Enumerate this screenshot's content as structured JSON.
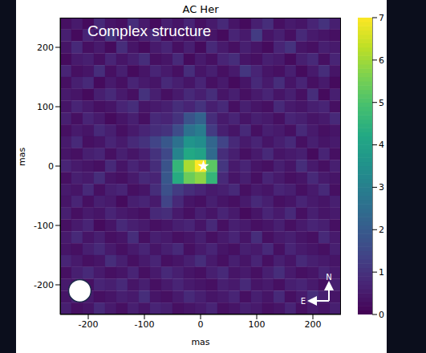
{
  "chart_data": {
    "type": "heatmap",
    "title": "AC Her",
    "annotation": "Complex structure",
    "x_label": "mas",
    "y_label": "mas",
    "xlim": [
      -250,
      250
    ],
    "ylim": [
      -250,
      250
    ],
    "xticks": [
      -200,
      -100,
      0,
      100,
      200
    ],
    "yticks": [
      -200,
      -100,
      0,
      100,
      200
    ],
    "x": [
      -240,
      -220,
      -200,
      -180,
      -160,
      -140,
      -120,
      -100,
      -80,
      -60,
      -40,
      -20,
      0,
      20,
      40,
      60,
      80,
      100,
      120,
      140,
      160,
      180,
      200,
      220,
      240
    ],
    "y": [
      240,
      220,
      200,
      180,
      160,
      140,
      120,
      100,
      80,
      60,
      40,
      20,
      0,
      -20,
      -40,
      -60,
      -80,
      -100,
      -120,
      -140,
      -160,
      -180,
      -200,
      -220,
      -240
    ],
    "cells": [
      [
        0.3,
        0.5,
        0.2,
        0.8,
        0.4,
        0.3,
        0.9,
        0.5,
        0.2,
        0.6,
        0.4,
        0.7,
        0.3,
        0.5,
        0.8,
        0.4,
        0.2,
        0.6,
        0.9,
        0.3,
        0.5,
        0.4,
        0.7,
        1.0,
        0.6
      ],
      [
        0.6,
        0.2,
        0.7,
        0.4,
        1.1,
        0.5,
        0.3,
        0.6,
        0.8,
        0.2,
        0.5,
        0.3,
        0.6,
        0.4,
        0.2,
        0.7,
        0.5,
        1.2,
        0.4,
        0.6,
        0.3,
        0.8,
        0.5,
        0.4,
        0.3
      ],
      [
        0.4,
        0.8,
        0.3,
        0.5,
        0.2,
        0.9,
        0.4,
        0.2,
        0.5,
        0.7,
        0.3,
        0.6,
        0.2,
        0.8,
        0.5,
        0.3,
        0.6,
        0.4,
        0.2,
        0.7,
        1.0,
        0.4,
        0.3,
        0.6,
        0.5
      ],
      [
        0.2,
        0.5,
        0.6,
        0.3,
        0.7,
        0.4,
        0.6,
        0.9,
        0.3,
        0.4,
        0.8,
        0.2,
        0.5,
        0.3,
        0.7,
        0.9,
        0.4,
        0.3,
        0.6,
        0.5,
        0.2,
        0.6,
        0.8,
        0.3,
        0.7
      ],
      [
        0.7,
        0.3,
        0.4,
        0.9,
        0.3,
        0.6,
        0.2,
        0.4,
        0.7,
        0.5,
        0.3,
        0.9,
        0.4,
        0.6,
        0.3,
        0.5,
        1.1,
        0.7,
        0.4,
        0.3,
        0.6,
        0.2,
        0.5,
        0.9,
        0.4
      ],
      [
        0.3,
        0.6,
        0.8,
        0.2,
        0.5,
        0.3,
        0.7,
        0.5,
        0.4,
        0.8,
        0.6,
        0.4,
        0.7,
        0.3,
        0.5,
        0.2,
        0.4,
        0.8,
        0.5,
        0.9,
        0.4,
        0.7,
        0.3,
        0.5,
        0.2
      ],
      [
        0.5,
        0.4,
        0.2,
        0.6,
        0.8,
        0.5,
        0.3,
        1.0,
        0.6,
        0.3,
        0.5,
        0.8,
        0.6,
        0.9,
        0.4,
        0.6,
        0.3,
        0.5,
        0.7,
        0.4,
        0.6,
        0.3,
        0.9,
        0.2,
        0.6
      ],
      [
        0.4,
        0.7,
        0.5,
        0.3,
        0.4,
        0.7,
        0.9,
        0.4,
        0.5,
        0.6,
        0.9,
        0.7,
        1.0,
        0.6,
        0.8,
        0.3,
        0.6,
        0.4,
        0.3,
        0.8,
        0.5,
        0.4,
        0.6,
        0.7,
        0.3
      ],
      [
        0.6,
        0.3,
        0.7,
        0.5,
        0.2,
        0.4,
        0.6,
        0.3,
        0.8,
        0.7,
        1.0,
        1.8,
        2.2,
        0.9,
        0.5,
        0.7,
        0.4,
        0.6,
        0.5,
        0.3,
        0.7,
        0.6,
        0.4,
        0.5,
        0.8
      ],
      [
        0.3,
        0.5,
        0.4,
        0.8,
        0.6,
        0.3,
        0.5,
        0.7,
        0.9,
        1.0,
        1.6,
        2.6,
        2.9,
        1.2,
        0.6,
        0.4,
        0.8,
        0.3,
        0.6,
        0.5,
        0.3,
        0.8,
        0.5,
        0.3,
        0.4
      ],
      [
        0.5,
        0.8,
        0.3,
        0.4,
        0.7,
        0.5,
        0.8,
        1.0,
        1.4,
        1.9,
        2.6,
        3.6,
        3.4,
        2.3,
        1.4,
        0.8,
        0.5,
        0.7,
        0.4,
        0.6,
        0.8,
        0.3,
        0.6,
        0.4,
        0.5
      ],
      [
        0.4,
        0.3,
        0.6,
        0.7,
        0.3,
        0.6,
        0.4,
        0.6,
        1.0,
        1.5,
        3.1,
        4.2,
        4.0,
        2.4,
        0.9,
        0.6,
        0.3,
        0.5,
        0.8,
        0.4,
        0.5,
        0.6,
        0.2,
        0.7,
        0.3
      ],
      [
        0.7,
        0.5,
        0.4,
        0.3,
        0.8,
        0.4,
        0.7,
        0.5,
        0.9,
        1.8,
        4.6,
        6.1,
        7.0,
        5.2,
        1.1,
        0.5,
        0.7,
        0.4,
        0.3,
        0.6,
        0.4,
        0.9,
        0.5,
        0.3,
        0.6
      ],
      [
        0.3,
        0.6,
        0.5,
        0.9,
        0.4,
        0.3,
        0.5,
        0.8,
        0.7,
        1.9,
        4.3,
        5.4,
        5.8,
        4.6,
        0.8,
        0.4,
        0.6,
        0.3,
        0.7,
        0.5,
        0.3,
        0.4,
        0.8,
        0.5,
        0.4
      ],
      [
        0.5,
        0.4,
        0.8,
        0.3,
        0.6,
        0.7,
        0.3,
        0.4,
        0.9,
        1.7,
        1.2,
        0.9,
        0.7,
        0.5,
        0.6,
        0.8,
        0.3,
        0.5,
        0.4,
        0.7,
        0.6,
        0.3,
        0.5,
        0.8,
        0.3
      ],
      [
        0.4,
        0.7,
        0.3,
        0.6,
        0.5,
        0.2,
        0.6,
        0.7,
        0.5,
        1.4,
        0.8,
        0.4,
        0.3,
        0.6,
        0.4,
        0.3,
        0.5,
        0.8,
        0.6,
        0.3,
        0.4,
        0.7,
        0.5,
        0.4,
        0.6
      ],
      [
        0.6,
        0.3,
        0.5,
        0.4,
        0.7,
        0.5,
        0.4,
        0.3,
        0.8,
        0.9,
        0.5,
        0.3,
        0.6,
        0.4,
        0.7,
        0.5,
        0.2,
        0.4,
        0.7,
        0.5,
        0.8,
        0.3,
        0.6,
        0.4,
        0.5
      ],
      [
        0.3,
        0.5,
        0.7,
        0.2,
        0.4,
        0.8,
        0.6,
        0.5,
        0.3,
        0.4,
        0.6,
        0.7,
        0.4,
        0.8,
        0.3,
        0.6,
        0.5,
        0.3,
        0.4,
        0.6,
        0.3,
        0.5,
        0.7,
        0.6,
        0.3
      ],
      [
        0.5,
        0.8,
        0.4,
        0.6,
        0.3,
        0.4,
        0.9,
        0.3,
        0.6,
        0.5,
        0.3,
        0.4,
        0.6,
        0.3,
        0.5,
        0.7,
        0.4,
        0.9,
        0.3,
        0.5,
        0.6,
        0.4,
        0.3,
        0.8,
        0.5
      ],
      [
        0.4,
        0.3,
        0.6,
        0.8,
        0.5,
        0.3,
        0.5,
        0.7,
        0.4,
        0.6,
        0.8,
        0.3,
        0.5,
        0.7,
        0.4,
        0.3,
        0.6,
        0.5,
        0.8,
        0.3,
        0.7,
        0.5,
        0.4,
        0.3,
        0.6
      ],
      [
        0.7,
        0.5,
        0.3,
        0.4,
        0.9,
        0.6,
        0.3,
        0.5,
        0.7,
        0.3,
        0.4,
        0.6,
        0.9,
        0.5,
        0.3,
        0.6,
        0.4,
        0.7,
        0.3,
        0.6,
        0.4,
        0.8,
        0.6,
        0.5,
        0.4
      ],
      [
        0.3,
        0.6,
        0.8,
        0.5,
        0.3,
        0.4,
        0.7,
        0.3,
        0.5,
        0.8,
        0.6,
        0.4,
        0.3,
        0.6,
        0.8,
        0.4,
        0.5,
        0.3,
        0.6,
        0.9,
        0.5,
        0.3,
        0.4,
        0.7,
        0.5
      ],
      [
        0.5,
        0.4,
        0.3,
        0.7,
        0.6,
        0.8,
        0.4,
        0.6,
        0.3,
        0.5,
        0.7,
        0.5,
        0.4,
        0.3,
        0.6,
        0.5,
        0.8,
        0.4,
        0.5,
        0.3,
        0.6,
        0.7,
        0.5,
        0.3,
        0.6
      ],
      [
        0.4,
        0.7,
        0.5,
        0.3,
        0.4,
        0.6,
        0.5,
        0.9,
        0.4,
        0.3,
        0.5,
        0.8,
        0.6,
        0.4,
        0.5,
        0.7,
        0.3,
        0.6,
        0.4,
        0.8,
        0.3,
        0.5,
        0.9,
        0.6,
        0.4
      ],
      [
        0.6,
        0.3,
        0.4,
        0.8,
        0.5,
        0.3,
        0.6,
        0.4,
        0.7,
        0.6,
        0.3,
        0.4,
        0.5,
        0.7,
        0.3,
        0.4,
        0.6,
        0.5,
        0.3,
        0.4,
        0.7,
        0.3,
        0.5,
        0.4,
        0.6
      ]
    ],
    "colorbar": {
      "range": [
        0,
        7
      ],
      "ticks": [
        0,
        1,
        2,
        3,
        4,
        5,
        6,
        7
      ]
    },
    "star": {
      "x": 5,
      "y": 0,
      "color": "#ffffff",
      "marker": "star"
    },
    "beam": {
      "x": -215,
      "y": -210,
      "diameter": 40
    },
    "compass": {
      "north": "N",
      "east": "E"
    }
  }
}
